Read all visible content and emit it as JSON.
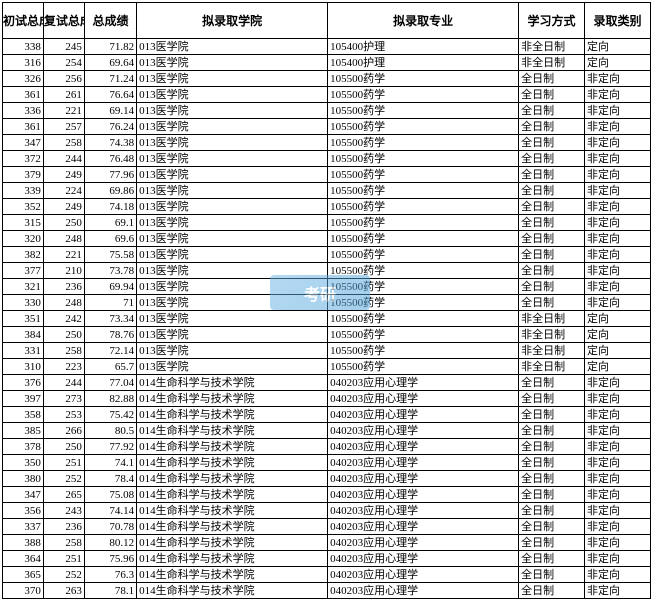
{
  "columns": [
    {
      "label": "初试总成绩",
      "class": "col-score1"
    },
    {
      "label": "复试总成绩",
      "class": "col-score2"
    },
    {
      "label": "总成绩",
      "class": "col-score3"
    },
    {
      "label": "拟录取学院",
      "class": "col-dept"
    },
    {
      "label": "拟录取专业",
      "class": "col-major"
    },
    {
      "label": "学习方式",
      "class": "col-study"
    },
    {
      "label": "录取类别",
      "class": "col-type"
    }
  ],
  "rows": [
    [
      "338",
      "245",
      "71.82",
      "013医学院",
      "105400护理",
      "非全日制",
      "定向"
    ],
    [
      "316",
      "254",
      "69.64",
      "013医学院",
      "105400护理",
      "非全日制",
      "定向"
    ],
    [
      "326",
      "256",
      "71.24",
      "013医学院",
      "105500药学",
      "全日制",
      "非定向"
    ],
    [
      "361",
      "261",
      "76.64",
      "013医学院",
      "105500药学",
      "全日制",
      "非定向"
    ],
    [
      "336",
      "221",
      "69.14",
      "013医学院",
      "105500药学",
      "全日制",
      "非定向"
    ],
    [
      "361",
      "257",
      "76.24",
      "013医学院",
      "105500药学",
      "全日制",
      "非定向"
    ],
    [
      "347",
      "258",
      "74.38",
      "013医学院",
      "105500药学",
      "全日制",
      "非定向"
    ],
    [
      "372",
      "244",
      "76.48",
      "013医学院",
      "105500药学",
      "全日制",
      "非定向"
    ],
    [
      "379",
      "249",
      "77.96",
      "013医学院",
      "105500药学",
      "全日制",
      "非定向"
    ],
    [
      "339",
      "224",
      "69.86",
      "013医学院",
      "105500药学",
      "全日制",
      "非定向"
    ],
    [
      "352",
      "249",
      "74.18",
      "013医学院",
      "105500药学",
      "全日制",
      "非定向"
    ],
    [
      "315",
      "250",
      "69.1",
      "013医学院",
      "105500药学",
      "全日制",
      "非定向"
    ],
    [
      "320",
      "248",
      "69.6",
      "013医学院",
      "105500药学",
      "全日制",
      "非定向"
    ],
    [
      "382",
      "221",
      "75.58",
      "013医学院",
      "105500药学",
      "全日制",
      "非定向"
    ],
    [
      "377",
      "210",
      "73.78",
      "013医学院",
      "105500药学",
      "全日制",
      "非定向"
    ],
    [
      "321",
      "236",
      "69.94",
      "013医学院",
      "105500药学",
      "全日制",
      "非定向"
    ],
    [
      "330",
      "248",
      "71",
      "013医学院",
      "105500药学",
      "全日制",
      "非定向"
    ],
    [
      "351",
      "242",
      "73.34",
      "013医学院",
      "105500药学",
      "非全日制",
      "定向"
    ],
    [
      "384",
      "250",
      "78.76",
      "013医学院",
      "105500药学",
      "非全日制",
      "定向"
    ],
    [
      "331",
      "258",
      "72.14",
      "013医学院",
      "105500药学",
      "非全日制",
      "定向"
    ],
    [
      "310",
      "223",
      "65.7",
      "013医学院",
      "105500药学",
      "非全日制",
      "定向"
    ],
    [
      "376",
      "244",
      "77.04",
      "014生命科学与技术学院",
      "040203应用心理学",
      "全日制",
      "非定向"
    ],
    [
      "397",
      "273",
      "82.88",
      "014生命科学与技术学院",
      "040203应用心理学",
      "全日制",
      "非定向"
    ],
    [
      "358",
      "253",
      "75.42",
      "014生命科学与技术学院",
      "040203应用心理学",
      "全日制",
      "非定向"
    ],
    [
      "385",
      "266",
      "80.5",
      "014生命科学与技术学院",
      "040203应用心理学",
      "全日制",
      "非定向"
    ],
    [
      "378",
      "250",
      "77.92",
      "014生命科学与技术学院",
      "040203应用心理学",
      "全日制",
      "非定向"
    ],
    [
      "350",
      "251",
      "74.1",
      "014生命科学与技术学院",
      "040203应用心理学",
      "全日制",
      "非定向"
    ],
    [
      "380",
      "252",
      "78.4",
      "014生命科学与技术学院",
      "040203应用心理学",
      "全日制",
      "非定向"
    ],
    [
      "347",
      "265",
      "75.08",
      "014生命科学与技术学院",
      "040203应用心理学",
      "全日制",
      "非定向"
    ],
    [
      "356",
      "243",
      "74.14",
      "014生命科学与技术学院",
      "040203应用心理学",
      "全日制",
      "非定向"
    ],
    [
      "337",
      "236",
      "70.78",
      "014生命科学与技术学院",
      "040203应用心理学",
      "全日制",
      "非定向"
    ],
    [
      "388",
      "258",
      "80.12",
      "014生命科学与技术学院",
      "040203应用心理学",
      "全日制",
      "非定向"
    ],
    [
      "364",
      "251",
      "75.96",
      "014生命科学与技术学院",
      "040203应用心理学",
      "全日制",
      "非定向"
    ],
    [
      "365",
      "252",
      "76.3",
      "014生命科学与技术学院",
      "040203应用心理学",
      "全日制",
      "非定向"
    ],
    [
      "370",
      "263",
      "78.1",
      "014生命科学与技术学院",
      "040203应用心理学",
      "全日制",
      "非定向"
    ]
  ],
  "watermark_text": "考研",
  "styling": {
    "border_color": "#000000",
    "background_color": "#ffffff",
    "font_family": "SimSun",
    "header_font_size": 12,
    "cell_font_size": 11,
    "watermark_color": "#4a9fd8"
  }
}
